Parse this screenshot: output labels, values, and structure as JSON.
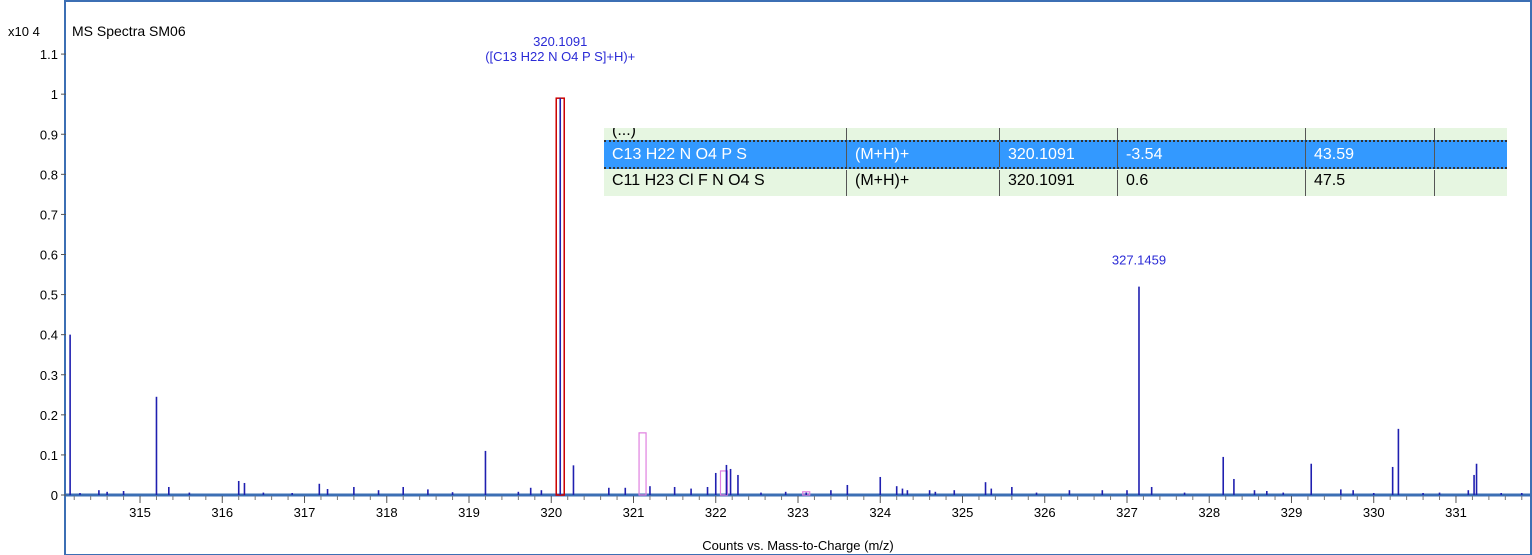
{
  "chart_data": {
    "type": "bar",
    "title": "MS Spectra SM06",
    "y_scale_label": "x10 4",
    "xlabel": "Counts vs. Mass-to-Charge (m/z)",
    "ylabel": "",
    "xlim": [
      314.1,
      331.9
    ],
    "ylim": [
      0,
      1.2
    ],
    "x_ticks": [
      "315",
      "316",
      "317",
      "318",
      "319",
      "320",
      "321",
      "322",
      "323",
      "324",
      "325",
      "326",
      "327",
      "328",
      "329",
      "330",
      "331"
    ],
    "y_ticks": [
      "0",
      "0.1",
      "0.2",
      "0.3",
      "0.4",
      "0.5",
      "0.6",
      "0.7",
      "0.8",
      "0.9",
      "1",
      "1.1"
    ],
    "grid": false,
    "colors": {
      "peaks": "#1f1fb0",
      "predicted": "#cc0000",
      "isotope": "#e080e0",
      "frame": "#3c6fb4",
      "label": "#2b2bd6"
    },
    "series": [
      {
        "name": "",
        "x": [
          314.15,
          314.27,
          314.5,
          314.6,
          314.8,
          315.2,
          315.35,
          315.6,
          316.2,
          316.27,
          316.5,
          316.85,
          317.18,
          317.28,
          317.6,
          317.9,
          318.2,
          318.5,
          318.8,
          319.2,
          319.6,
          319.75,
          319.88,
          320.1091,
          320.27,
          320.7,
          320.9,
          321.2,
          321.5,
          321.7,
          321.9,
          322.0,
          322.13,
          322.18,
          322.27,
          322.55,
          322.85,
          323.1,
          323.4,
          323.6,
          324.0,
          324.2,
          324.27,
          324.33,
          324.6,
          324.67,
          324.9,
          325.28,
          325.35,
          325.6,
          325.9,
          326.3,
          326.7,
          327.0,
          327.1459,
          327.3,
          327.7,
          328.17,
          328.3,
          328.55,
          328.7,
          328.9,
          329.24,
          329.6,
          329.75,
          330.0,
          330.23,
          330.3,
          330.6,
          330.8,
          331.15,
          331.22,
          331.25,
          331.55,
          331.8
        ],
        "values": [
          0.4,
          0.005,
          0.012,
          0.008,
          0.01,
          0.245,
          0.02,
          0.006,
          0.035,
          0.03,
          0.006,
          0.005,
          0.028,
          0.015,
          0.02,
          0.012,
          0.02,
          0.014,
          0.007,
          0.11,
          0.008,
          0.018,
          0.012,
          0.99,
          0.074,
          0.018,
          0.018,
          0.022,
          0.02,
          0.016,
          0.02,
          0.055,
          0.075,
          0.065,
          0.05,
          0.006,
          0.008,
          0.006,
          0.012,
          0.025,
          0.045,
          0.022,
          0.016,
          0.012,
          0.012,
          0.008,
          0.012,
          0.032,
          0.016,
          0.02,
          0.006,
          0.012,
          0.012,
          0.012,
          0.52,
          0.02,
          0.006,
          0.095,
          0.04,
          0.012,
          0.01,
          0.006,
          0.078,
          0.014,
          0.012,
          0.005,
          0.07,
          0.165,
          0.005,
          0.006,
          0.012,
          0.05,
          0.078,
          0.005,
          0.005
        ]
      }
    ],
    "predicted_isotopes": [
      {
        "x": 320.1091,
        "value": 0.99,
        "type": "predicted"
      },
      {
        "x": 321.11,
        "value": 0.155,
        "type": "isotope"
      },
      {
        "x": 322.1,
        "value": 0.06,
        "type": "isotope"
      },
      {
        "x": 323.1,
        "value": 0.008,
        "type": "isotope"
      }
    ],
    "annotations": [
      {
        "x": 320.1091,
        "mz": "320.1091",
        "formula": "([C13 H22 N O4 P S]+H)+"
      },
      {
        "x": 327.1459,
        "mz": "327.1459",
        "formula": ""
      }
    ]
  },
  "formula_table": {
    "top_row": [
      "(...)",
      "",
      "",
      "",
      ""
    ],
    "selected_row": [
      "C13 H22 N O4 P S",
      "(M+H)+",
      "320.1091",
      "-3.54",
      "43.59"
    ],
    "next_row": [
      "C11 H23 Cl F N O4 S",
      "(M+H)+",
      "320.1091",
      "0.6",
      "47.5"
    ]
  }
}
